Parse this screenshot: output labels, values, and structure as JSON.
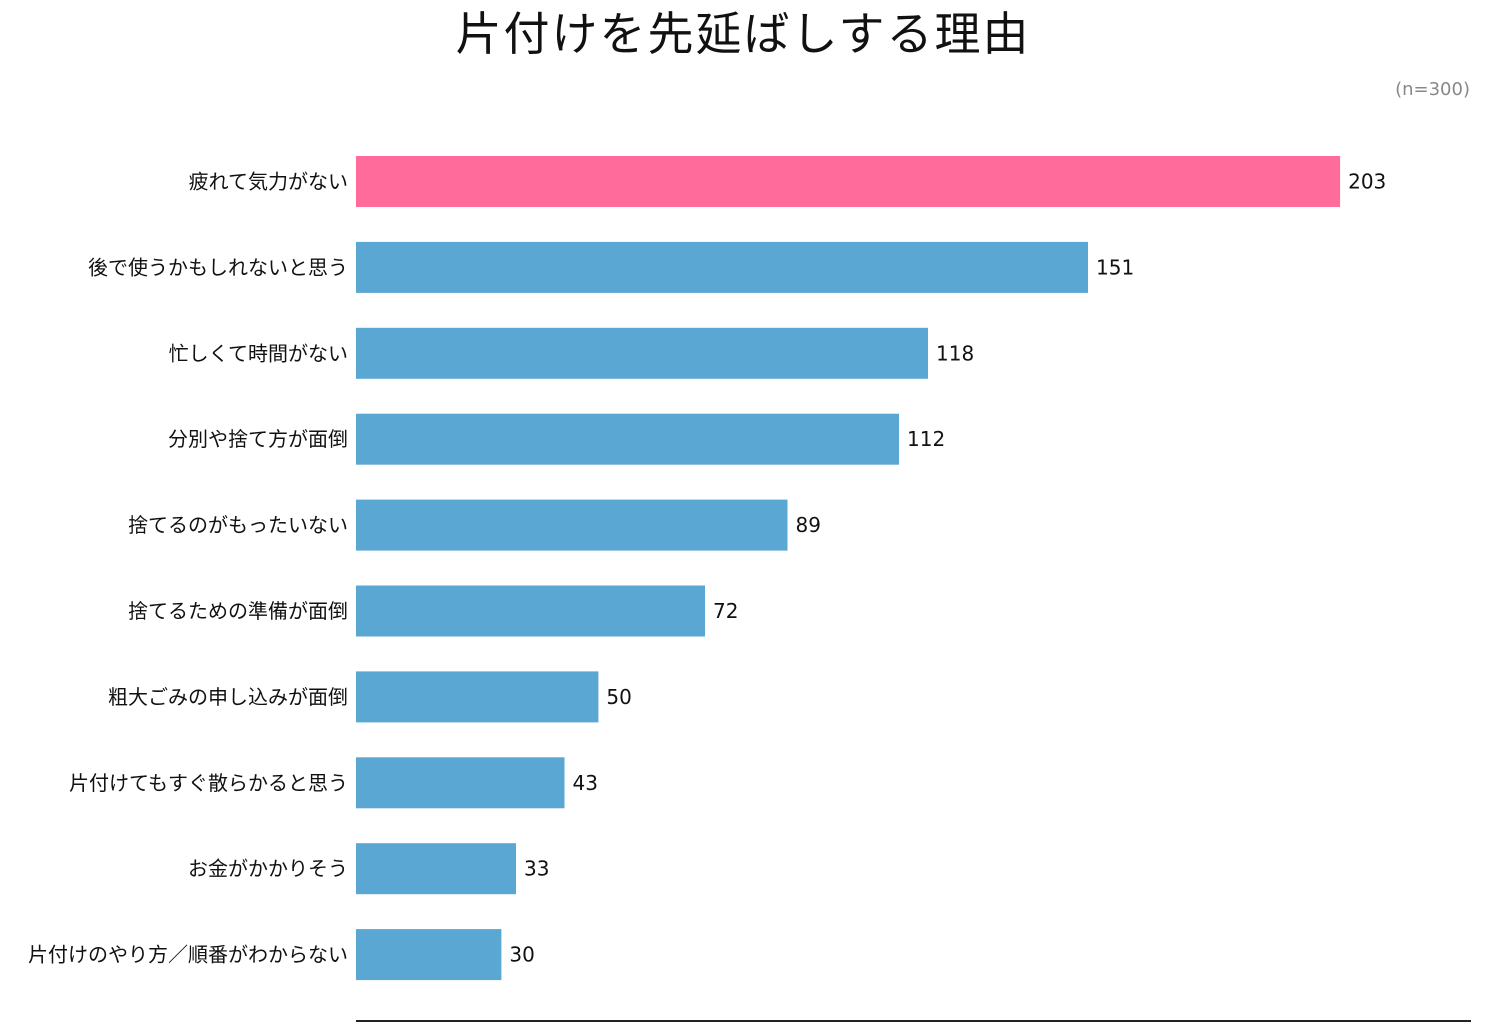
{
  "title": "片付けを先延ばしする理由",
  "note": "(n=300)",
  "colors": {
    "highlight": "#FF6B9A",
    "bar": "#5BA7D3",
    "axis": "#222222"
  },
  "chart_data": {
    "type": "bar",
    "orientation": "horizontal",
    "title": "片付けを先延ばしする理由",
    "note": "(n=300)",
    "categories": [
      "疲れて気力がない",
      "後で使うかもしれないと思う",
      "忙しくて時間がない",
      "分別や捨て方が面倒",
      "捨てるのがもったいない",
      "捨てるための準備が面倒",
      "粗大ごみの申し込みが面倒",
      "片付けてもすぐ散らかると思う",
      "お金がかかりそう",
      "片付けのやり方／順番がわからない"
    ],
    "values": [
      203,
      151,
      118,
      112,
      89,
      72,
      50,
      43,
      33,
      30
    ],
    "highlight_index": 0,
    "xlim": [
      0,
      230
    ],
    "grid": false,
    "data_labels": true
  }
}
